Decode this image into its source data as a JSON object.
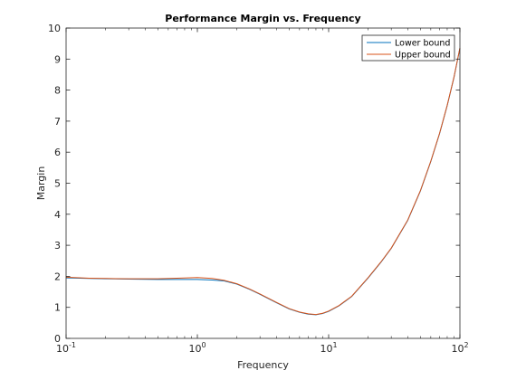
{
  "chart_data": {
    "type": "line",
    "title": "Performance Margin vs. Frequency",
    "xlabel": "Frequency",
    "ylabel": "Margin",
    "xscale": "log",
    "xlim": [
      0.1,
      100
    ],
    "ylim": [
      0,
      10
    ],
    "xticks": [
      {
        "value": 0.1,
        "base": "10",
        "exp": "-1"
      },
      {
        "value": 1,
        "base": "10",
        "exp": "0"
      },
      {
        "value": 10,
        "base": "10",
        "exp": "1"
      },
      {
        "value": 100,
        "base": "10",
        "exp": "2"
      }
    ],
    "yticks": [
      "0",
      "1",
      "2",
      "3",
      "4",
      "5",
      "6",
      "7",
      "8",
      "9",
      "10"
    ],
    "grid": false,
    "legend_position": "top-right",
    "series": [
      {
        "name": "Lower bound",
        "color": "#0072BD",
        "x": [
          0.1,
          0.15,
          0.2,
          0.3,
          0.5,
          0.7,
          1.0,
          1.3,
          1.6,
          2.0,
          2.5,
          3.0,
          4.0,
          5.0,
          6.0,
          7.0,
          8.0,
          9.0,
          10.0,
          12.0,
          15.0,
          20.0,
          25.0,
          30.0,
          40.0,
          50.0,
          60.0,
          70.0,
          80.0,
          90.0,
          100.0
        ],
        "y": [
          1.95,
          1.93,
          1.92,
          1.91,
          1.9,
          1.9,
          1.9,
          1.88,
          1.85,
          1.75,
          1.58,
          1.42,
          1.15,
          0.95,
          0.84,
          0.78,
          0.76,
          0.8,
          0.87,
          1.05,
          1.35,
          1.95,
          2.45,
          2.9,
          3.8,
          4.75,
          5.7,
          6.6,
          7.5,
          8.4,
          9.35
        ]
      },
      {
        "name": "Upper bound",
        "color": "#D95319",
        "x": [
          0.1,
          0.15,
          0.2,
          0.3,
          0.5,
          0.7,
          1.0,
          1.3,
          1.6,
          2.0,
          2.5,
          3.0,
          4.0,
          5.0,
          6.0,
          7.0,
          8.0,
          9.0,
          10.0,
          12.0,
          15.0,
          20.0,
          25.0,
          30.0,
          40.0,
          50.0,
          60.0,
          70.0,
          80.0,
          90.0,
          100.0
        ],
        "y": [
          1.97,
          1.94,
          1.93,
          1.92,
          1.92,
          1.94,
          1.96,
          1.93,
          1.87,
          1.76,
          1.59,
          1.43,
          1.16,
          0.96,
          0.85,
          0.79,
          0.77,
          0.81,
          0.88,
          1.06,
          1.36,
          1.96,
          2.46,
          2.91,
          3.81,
          4.76,
          5.71,
          6.61,
          7.51,
          8.41,
          9.36
        ]
      }
    ]
  }
}
